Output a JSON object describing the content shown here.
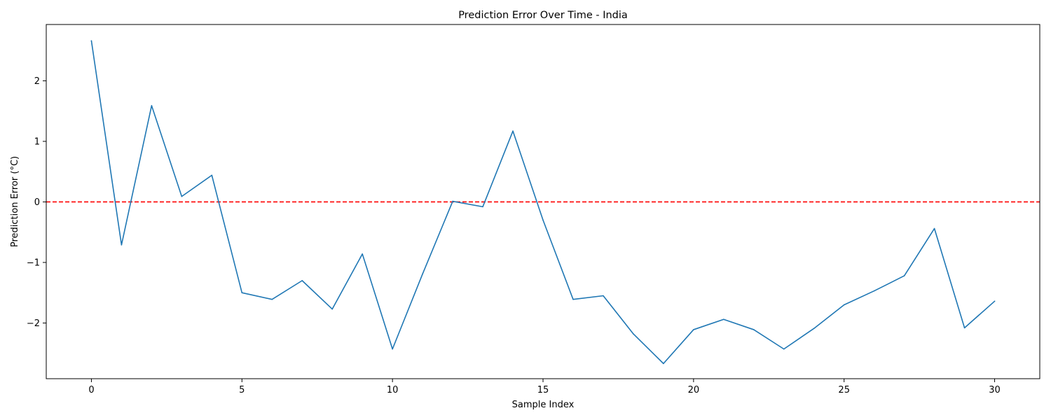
{
  "chart_data": {
    "type": "line",
    "title": "Prediction Error Over Time - India",
    "xlabel": "Sample Index",
    "ylabel": "Prediction Error (°C)",
    "xlim": [
      -1.5,
      31.5
    ],
    "ylim": [
      -2.92,
      2.93
    ],
    "xticks": [
      0,
      5,
      10,
      15,
      20,
      25,
      30
    ],
    "yticks": [
      -2,
      -1,
      0,
      1,
      2
    ],
    "ytick_labels": [
      "−2",
      "−1",
      "0",
      "1",
      "2"
    ],
    "grid": false,
    "legend": "none",
    "reference_line": {
      "y": 0,
      "style": "dashed",
      "color": "#ff0000"
    },
    "series": [
      {
        "color": "#1f77b4",
        "x": [
          0,
          1,
          2,
          3,
          4,
          5,
          6,
          7,
          8,
          9,
          10,
          11,
          12,
          13,
          14,
          15,
          16,
          17,
          18,
          19,
          20,
          21,
          22,
          23,
          24,
          25,
          26,
          27,
          28,
          29,
          30
        ],
        "values": [
          2.66,
          -0.71,
          1.59,
          0.09,
          0.44,
          -1.5,
          -1.61,
          -1.3,
          -1.77,
          -0.86,
          -2.43,
          -1.19,
          0.01,
          -0.08,
          1.17,
          -0.3,
          -1.61,
          -1.55,
          -2.18,
          -2.67,
          -2.11,
          -1.94,
          -2.11,
          -2.43,
          -2.09,
          -1.7,
          -1.47,
          -1.22,
          -0.44,
          -2.08,
          -1.64
        ]
      }
    ]
  }
}
